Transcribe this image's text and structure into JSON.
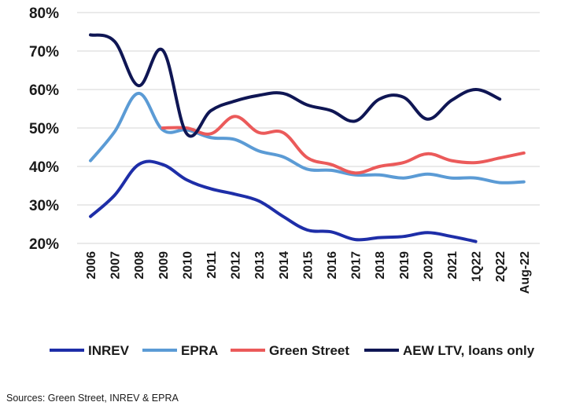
{
  "chart_data": {
    "type": "line",
    "categories": [
      "2006",
      "2007",
      "2008",
      "2009",
      "2010",
      "2011",
      "2012",
      "2013",
      "2014",
      "2015",
      "2016",
      "2017",
      "2018",
      "2019",
      "2020",
      "2021",
      "1Q22",
      "2Q22",
      "Aug-22"
    ],
    "yticks": [
      "20%",
      "30%",
      "40%",
      "50%",
      "60%",
      "70%",
      "80%"
    ],
    "ylim": [
      20,
      80
    ],
    "grid": true,
    "legend_position": "bottom",
    "series": [
      {
        "name": "INREV",
        "color": "#1e2ea8",
        "values": [
          27,
          32.5,
          40.5,
          40.5,
          36.5,
          34.2,
          32.8,
          31,
          27,
          23.5,
          23,
          21,
          21.5,
          21.8,
          22.8,
          21.8,
          20.5,
          null,
          null
        ]
      },
      {
        "name": "EPRA",
        "color": "#5b9bd5",
        "values": [
          41.5,
          49,
          59,
          49.5,
          49.5,
          47.5,
          47,
          44,
          42.5,
          39.3,
          39,
          37.8,
          37.8,
          37,
          38,
          37,
          37,
          35.8,
          36
        ]
      },
      {
        "name": "Green Street",
        "color": "#eb5a5a",
        "values": [
          null,
          null,
          null,
          50,
          50,
          48.5,
          53,
          48.8,
          48.8,
          42.3,
          40.5,
          38.3,
          40,
          41,
          43.3,
          41.5,
          41,
          42.2,
          43.5
        ]
      },
      {
        "name": "AEW LTV, loans only",
        "color": "#0f1654",
        "values": [
          74.2,
          72.5,
          61,
          70.2,
          48.5,
          54.5,
          57,
          58.5,
          59,
          56,
          54.5,
          51.8,
          57.5,
          58,
          52.3,
          57.2,
          60,
          57.5,
          null
        ]
      }
    ]
  },
  "source_note": "Sources: Green Street, INREV & EPRA"
}
